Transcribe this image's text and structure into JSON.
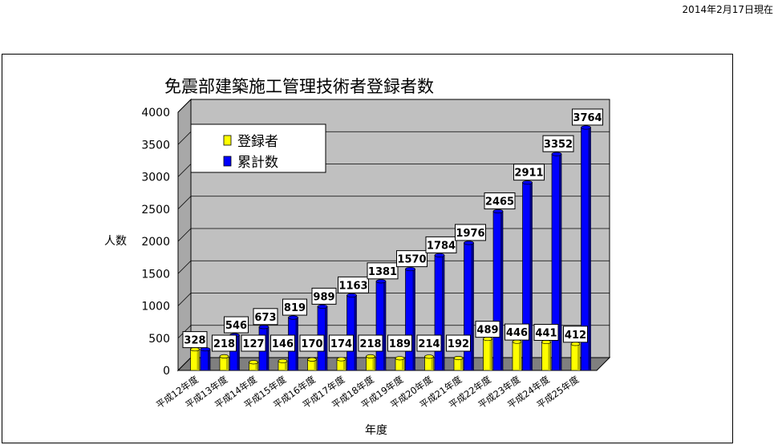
{
  "date_note": "2014年2月17日現在",
  "chart_data": {
    "type": "bar",
    "title": "免震部建築施工管理技術者登録者数",
    "xlabel": "年度",
    "ylabel": "人数",
    "ylim": [
      0,
      4000
    ],
    "yticks": [
      0,
      500,
      1000,
      1500,
      2000,
      2500,
      3000,
      3500,
      4000
    ],
    "categories": [
      "平成12年度",
      "平成13年度",
      "平成14年度",
      "平成15年度",
      "平成16年度",
      "平成17年度",
      "平成18年度",
      "平成19年度",
      "平成20年度",
      "平成21年度",
      "平成22年度",
      "平成23年度",
      "平成24年度",
      "平成25年度"
    ],
    "series": [
      {
        "name": "登録者",
        "color": "#ffff00",
        "values": [
          328,
          218,
          127,
          146,
          170,
          174,
          218,
          189,
          214,
          192,
          489,
          446,
          441,
          412
        ]
      },
      {
        "name": "累計数",
        "color": "#0000ff",
        "values": [
          328,
          546,
          673,
          819,
          989,
          1163,
          1381,
          1570,
          1784,
          1976,
          2465,
          2911,
          3352,
          3764
        ]
      }
    ],
    "grid": true,
    "legend_position": "top-left",
    "style": "3d-cylinder"
  }
}
